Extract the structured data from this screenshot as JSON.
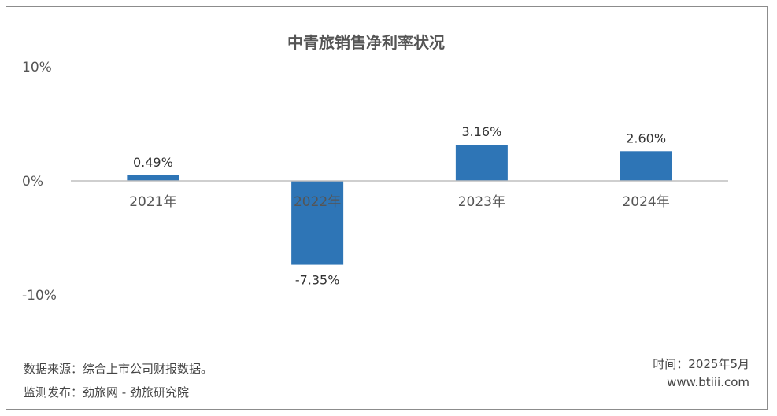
{
  "chart_data": {
    "type": "bar",
    "title": "中青旅销售净利率状况",
    "categories": [
      "2021年",
      "2022年",
      "2023年",
      "2024年"
    ],
    "values": [
      0.49,
      -7.35,
      3.16,
      2.6
    ],
    "value_labels": [
      "0.49%",
      "-7.35%",
      "3.16%",
      "2.60%"
    ],
    "ylim": [
      -10,
      10
    ],
    "yticks": [
      10,
      0,
      -10
    ],
    "ytick_labels": [
      "10%",
      "0%",
      "-10%"
    ],
    "xlabel": "",
    "ylabel": "",
    "grid": false,
    "bar_color": "#2e75b6",
    "axis_color": "#bfbfbf"
  },
  "footer": {
    "source": "数据来源：综合上市公司财报数据。",
    "publisher": "监测发布：劲旅网 - 劲旅研究院",
    "time": "时间：2025年5月",
    "website": "www.btiii.com"
  }
}
